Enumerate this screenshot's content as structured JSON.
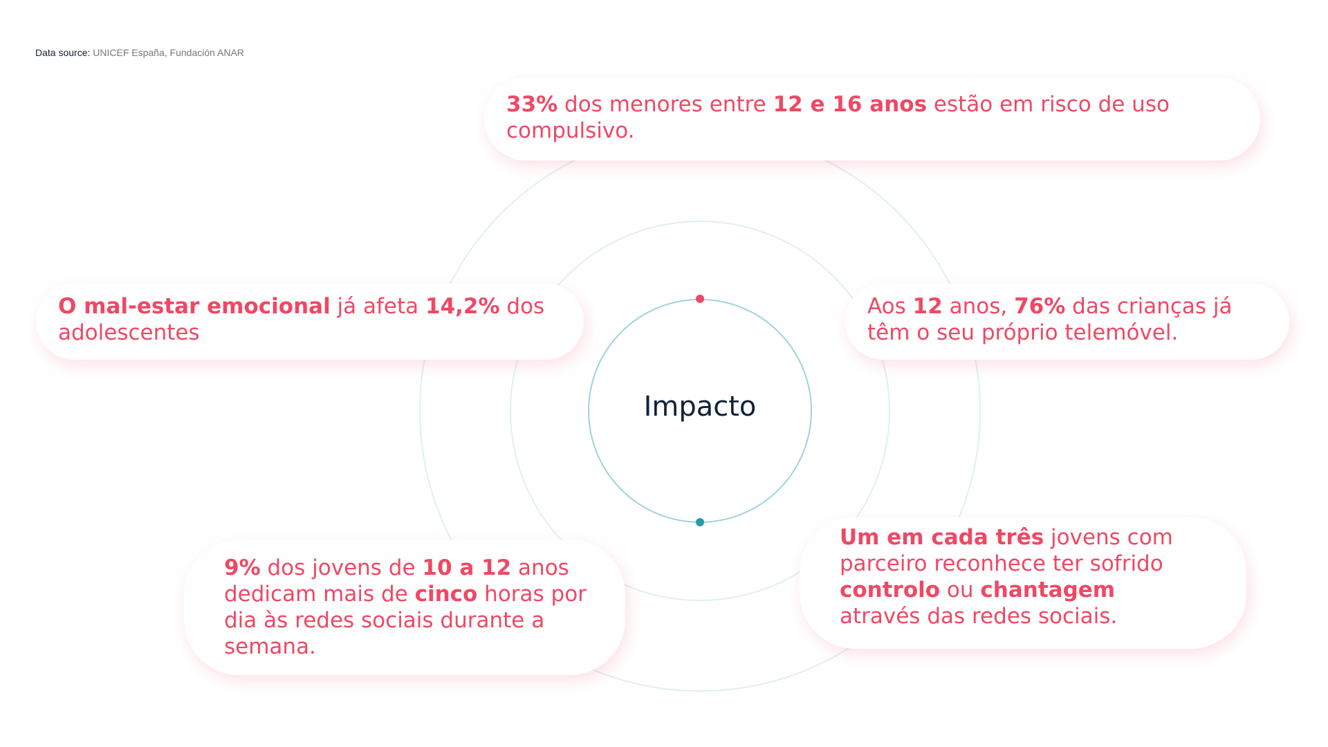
{
  "source": {
    "label": "Data source:",
    "text": "UNICEF España, Fundación ANAR"
  },
  "center": {
    "title": "Impacto"
  },
  "cards": {
    "top": {
      "b1": "33%",
      "t1": " dos menores entre ",
      "b2": "12 e 16 anos",
      "t2": " estão em risco de uso compulsivo."
    },
    "left": {
      "b1": "O mal-estar emocional",
      "t1": " já afeta ",
      "b2": "14,2%",
      "t2": " dos adolescentes"
    },
    "right": {
      "t1": "Aos ",
      "b1": "12",
      "t2": " anos, ",
      "b2": "76%",
      "t3": " das crianças já têm o seu próprio telemóvel."
    },
    "bottom_left": {
      "b1": "9%",
      "t1": " dos jovens de ",
      "b2": "10 a 12",
      "t2": " anos dedicam mais de ",
      "b3": "cinco",
      "t3": " horas por dia às redes sociais durante a semana."
    },
    "bottom_right": {
      "b1": "Um em cada três",
      "t1": " jovens com parceiro reconhece ter sofrido ",
      "b2": "controlo",
      "t2": " ou ",
      "b3": "chantagem",
      "t3": " através das redes sociais."
    }
  },
  "colors": {
    "accent": "#ef4864",
    "teal": "#2a9aa6",
    "ring": "#9fd3da",
    "ring_light": "#dcecee",
    "text_dark": "#0f2236"
  }
}
